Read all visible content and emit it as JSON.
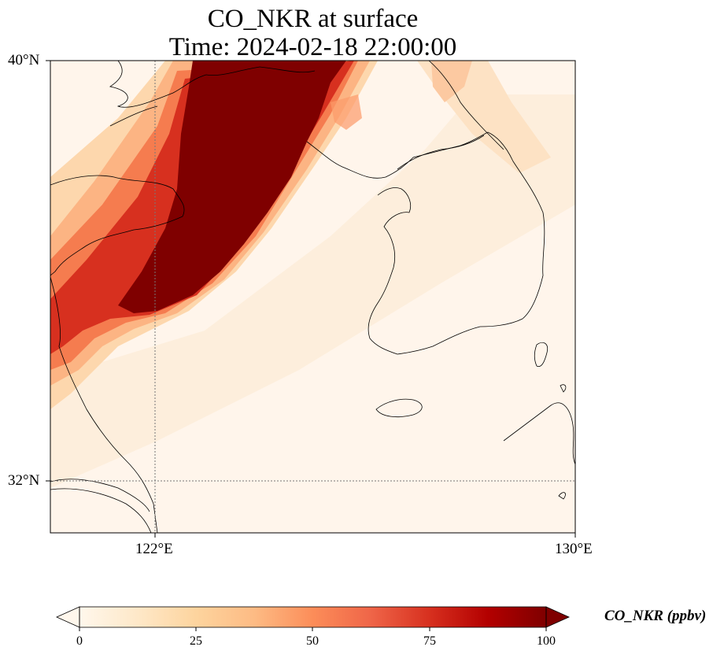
{
  "map": {
    "title_line1": "CO_NKR at surface",
    "title_line2": "Time: 2024-02-18 22:00:00",
    "variable": "CO_NKR",
    "time": "2024-02-18 22:00:00",
    "region": {
      "lon_range": [
        120,
        130
      ],
      "lat_range": [
        31,
        40
      ]
    },
    "lat_ticks": [
      {
        "label": "40°N",
        "value": 40
      },
      {
        "label": "32°N",
        "value": 32
      }
    ],
    "lon_ticks": [
      {
        "label": "122°E",
        "value": 122
      },
      {
        "label": "130°E",
        "value": 130
      }
    ],
    "gridlines": {
      "lon": 122,
      "lat": 32,
      "style": "dotted"
    },
    "plume_description_colors": [
      "#fff5eb",
      "#fdd49e",
      "#fc8d59",
      "#d7301f",
      "#7f0000"
    ]
  },
  "colorbar": {
    "label": "CO_NKR (ppbv)",
    "min": 0,
    "max": 100,
    "extend": "both",
    "ticks": [
      "0",
      "25",
      "50",
      "75",
      "100"
    ],
    "colormap": "OrRd",
    "stops": [
      "#fff7ec",
      "#fee8c8",
      "#fdd49e",
      "#fdbb84",
      "#fc8d59",
      "#ef6548",
      "#d7301f",
      "#b30000",
      "#7f0000"
    ]
  }
}
